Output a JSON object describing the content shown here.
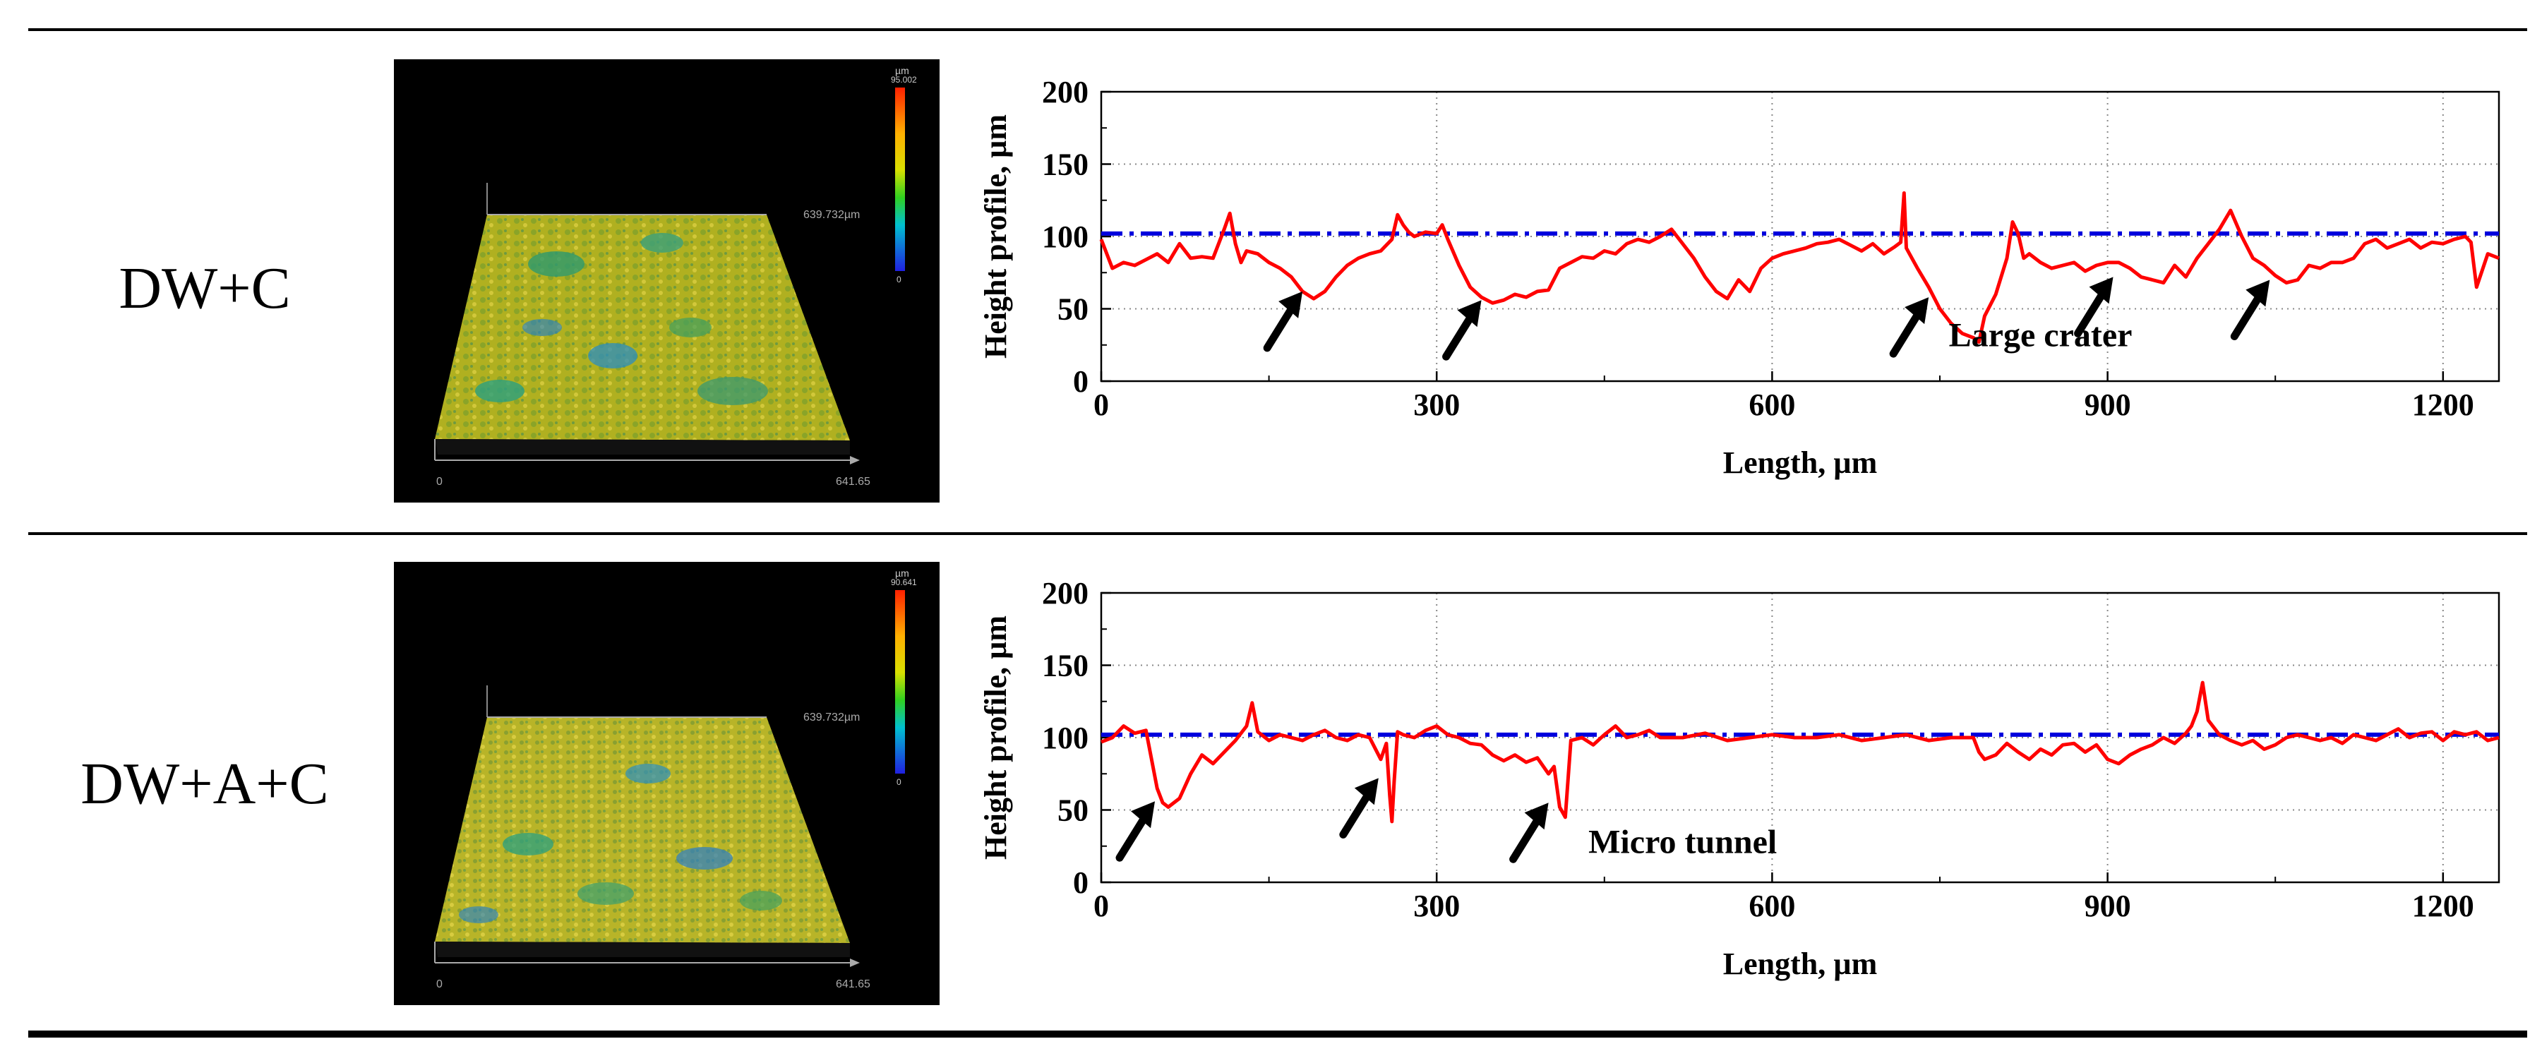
{
  "rows": [
    {
      "label": "DW+C",
      "surface_image": {
        "scale_unit": "µm",
        "scale_max": "95.002",
        "scale_min": "0",
        "y_extent_label": "639.732µm",
        "x_start_label": "0",
        "x_end_label": "641.65",
        "colors": {
          "high": "#ff2a00",
          "mid": "#c8c800",
          "low": "#1a7ad8",
          "floor": "#000000"
        }
      },
      "annotation_text": "Large crater"
    },
    {
      "label": "DW+A+C",
      "surface_image": {
        "scale_unit": "µm",
        "scale_max": "90.641",
        "scale_min": "0",
        "y_extent_label": "639.732µm",
        "x_start_label": "0",
        "x_end_label": "641.65",
        "colors": {
          "high": "#ff2a00",
          "mid": "#c8c800",
          "low": "#1a7ad8",
          "floor": "#000000"
        }
      },
      "annotation_text": "Micro tunnel"
    }
  ],
  "colors": {
    "profile": "#ff0000",
    "reference": "#0000dd",
    "arrow": "#000000",
    "grid": "#888888"
  },
  "chart_data": [
    {
      "type": "line",
      "title": "",
      "xlabel": "Length, µm",
      "ylabel": "Height profile, µm",
      "xlim": [
        0,
        1250
      ],
      "ylim": [
        0,
        200
      ],
      "xticks": [
        0,
        300,
        600,
        900,
        1200
      ],
      "yticks": [
        0,
        50,
        100,
        150,
        200
      ],
      "grid": true,
      "reference_line": {
        "y": 102,
        "style": "dash-dot"
      },
      "series": [
        {
          "name": "Height profile",
          "x": [
            0,
            10,
            20,
            30,
            40,
            50,
            60,
            70,
            80,
            90,
            100,
            110,
            115,
            120,
            125,
            130,
            140,
            150,
            160,
            170,
            180,
            190,
            200,
            210,
            220,
            230,
            240,
            250,
            260,
            265,
            270,
            275,
            280,
            290,
            300,
            305,
            310,
            320,
            330,
            340,
            350,
            360,
            370,
            380,
            390,
            400,
            410,
            420,
            430,
            440,
            450,
            460,
            470,
            480,
            490,
            500,
            510,
            520,
            530,
            540,
            550,
            560,
            570,
            580,
            590,
            600,
            610,
            620,
            630,
            640,
            650,
            660,
            670,
            680,
            690,
            700,
            710,
            715,
            718,
            720,
            725,
            730,
            740,
            750,
            760,
            770,
            780,
            785,
            790,
            800,
            810,
            815,
            820,
            825,
            830,
            840,
            850,
            860,
            870,
            880,
            890,
            900,
            910,
            920,
            930,
            940,
            950,
            960,
            970,
            980,
            990,
            1000,
            1010,
            1020,
            1030,
            1040,
            1050,
            1060,
            1070,
            1080,
            1090,
            1100,
            1110,
            1120,
            1130,
            1140,
            1150,
            1160,
            1170,
            1180,
            1190,
            1200,
            1210,
            1220,
            1225,
            1230,
            1240,
            1250
          ],
          "y": [
            98,
            78,
            82,
            80,
            84,
            88,
            82,
            95,
            85,
            86,
            85,
            105,
            116,
            95,
            82,
            90,
            88,
            82,
            78,
            72,
            62,
            57,
            62,
            72,
            80,
            85,
            88,
            90,
            98,
            115,
            108,
            103,
            100,
            103,
            102,
            108,
            98,
            80,
            65,
            58,
            54,
            56,
            60,
            58,
            62,
            63,
            78,
            82,
            86,
            85,
            90,
            88,
            95,
            98,
            96,
            100,
            105,
            95,
            85,
            72,
            62,
            57,
            70,
            62,
            78,
            85,
            88,
            90,
            92,
            95,
            96,
            98,
            94,
            90,
            95,
            88,
            93,
            96,
            130,
            92,
            85,
            78,
            65,
            50,
            40,
            33,
            30,
            27,
            45,
            60,
            85,
            110,
            102,
            85,
            88,
            82,
            78,
            80,
            82,
            76,
            80,
            82,
            82,
            78,
            72,
            70,
            68,
            80,
            72,
            85,
            95,
            105,
            118,
            100,
            85,
            80,
            73,
            68,
            70,
            80,
            78,
            82,
            82,
            85,
            95,
            98,
            92,
            95,
            98,
            92,
            96,
            95,
            98,
            100,
            96,
            65,
            88,
            85
          ]
        }
      ],
      "annotations": [
        {
          "text_ref": "rows.0.annotation_text",
          "x": 840,
          "y": 32
        },
        {
          "arrow_target": [
            180,
            62
          ]
        },
        {
          "arrow_target": [
            340,
            56
          ]
        },
        {
          "arrow_target": [
            740,
            58
          ]
        },
        {
          "arrow_target": [
            905,
            72
          ]
        },
        {
          "arrow_target": [
            1045,
            70
          ]
        }
      ]
    },
    {
      "type": "line",
      "title": "",
      "xlabel": "Length, µm",
      "ylabel": "Height profile, µm",
      "xlim": [
        0,
        1250
      ],
      "ylim": [
        0,
        200
      ],
      "xticks": [
        0,
        300,
        600,
        900,
        1200
      ],
      "yticks": [
        0,
        50,
        100,
        150,
        200
      ],
      "grid": true,
      "reference_line": {
        "y": 102,
        "style": "dash-dot"
      },
      "series": [
        {
          "name": "Height profile",
          "x": [
            0,
            10,
            20,
            30,
            40,
            45,
            50,
            55,
            60,
            70,
            80,
            90,
            100,
            110,
            120,
            130,
            135,
            140,
            150,
            160,
            170,
            180,
            190,
            200,
            210,
            220,
            230,
            240,
            250,
            255,
            258,
            260,
            262,
            265,
            270,
            280,
            290,
            300,
            310,
            320,
            330,
            340,
            350,
            360,
            370,
            380,
            390,
            400,
            405,
            410,
            415,
            420,
            430,
            440,
            450,
            460,
            470,
            480,
            490,
            500,
            520,
            540,
            560,
            580,
            600,
            620,
            640,
            660,
            680,
            700,
            720,
            740,
            760,
            780,
            785,
            790,
            800,
            810,
            820,
            830,
            840,
            850,
            860,
            870,
            880,
            890,
            900,
            910,
            920,
            930,
            940,
            950,
            960,
            970,
            975,
            980,
            985,
            990,
            1000,
            1010,
            1020,
            1030,
            1040,
            1050,
            1060,
            1070,
            1080,
            1090,
            1100,
            1110,
            1120,
            1130,
            1140,
            1150,
            1160,
            1170,
            1180,
            1190,
            1200,
            1210,
            1220,
            1230,
            1240,
            1250
          ],
          "y": [
            97,
            100,
            108,
            103,
            105,
            85,
            65,
            55,
            52,
            58,
            75,
            88,
            82,
            90,
            98,
            108,
            124,
            104,
            98,
            102,
            100,
            98,
            102,
            105,
            100,
            98,
            102,
            100,
            85,
            96,
            60,
            42,
            70,
            104,
            102,
            100,
            105,
            108,
            102,
            100,
            96,
            95,
            88,
            84,
            88,
            83,
            86,
            75,
            80,
            52,
            45,
            98,
            100,
            95,
            102,
            108,
            100,
            102,
            105,
            100,
            100,
            103,
            98,
            100,
            102,
            100,
            100,
            102,
            98,
            100,
            102,
            98,
            100,
            100,
            90,
            85,
            88,
            96,
            90,
            85,
            92,
            88,
            95,
            96,
            90,
            95,
            85,
            82,
            88,
            92,
            95,
            100,
            96,
            103,
            108,
            118,
            138,
            112,
            102,
            98,
            95,
            98,
            92,
            95,
            100,
            102,
            100,
            98,
            100,
            96,
            102,
            100,
            98,
            102,
            106,
            100,
            103,
            104,
            98,
            104,
            102,
            104,
            98,
            100
          ],
          "annotation_dummy": null
        }
      ],
      "annotations": [
        {
          "text_ref": "rows.1.annotation_text",
          "x": 520,
          "y": 28
        },
        {
          "arrow_target": [
            48,
            56
          ]
        },
        {
          "arrow_target": [
            248,
            72
          ]
        },
        {
          "arrow_target": [
            400,
            55
          ]
        }
      ]
    }
  ]
}
